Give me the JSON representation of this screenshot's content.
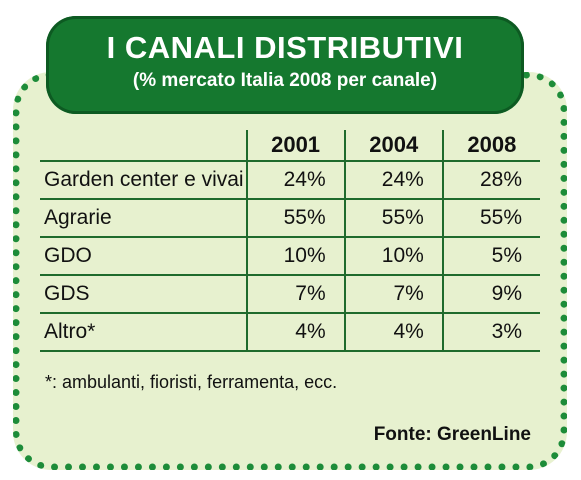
{
  "header": {
    "title": "I CANALI DISTRIBUTIVI",
    "subtitle": "(% mercato Italia 2008 per canale)"
  },
  "chart_data": {
    "type": "table",
    "title": "I CANALI DISTRIBUTIVI",
    "subtitle": "(% mercato Italia 2008 per canale)",
    "columns": [
      "2001",
      "2004",
      "2008"
    ],
    "rows": [
      {
        "label": "Garden center e vivai",
        "values": [
          "24%",
          "24%",
          "28%"
        ]
      },
      {
        "label": "Agrarie",
        "values": [
          "55%",
          "55%",
          "55%"
        ]
      },
      {
        "label": "GDO",
        "values": [
          "10%",
          "10%",
          "5%"
        ]
      },
      {
        "label": "GDS",
        "values": [
          "7%",
          "7%",
          "9%"
        ]
      },
      {
        "label": "Altro*",
        "values": [
          "4%",
          "4%",
          "3%"
        ]
      }
    ]
  },
  "footnote": "*: ambulanti, fioristi, ferramenta, ecc.",
  "source": "Fonte: GreenLine",
  "colors": {
    "header_green": "#15782f",
    "border_green": "#1d8c39",
    "panel_background": "#e7f1cf"
  }
}
